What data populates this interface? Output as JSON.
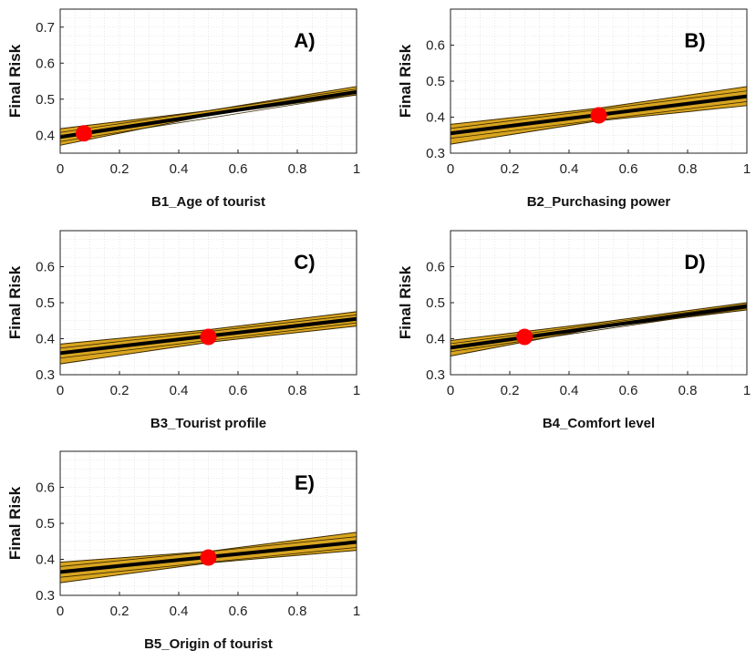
{
  "chart_data": [
    {
      "type": "line",
      "panel_label": "A)",
      "xlabel": "B1_Age of tourist",
      "ylabel": "Final Risk",
      "xlim": [
        0,
        1
      ],
      "ylim": [
        0.35,
        0.75
      ],
      "xticks": [
        "0",
        "0.2",
        "0.4",
        "0.6",
        "0.8",
        "1"
      ],
      "yticks": [
        "0.4",
        "0.5",
        "0.6",
        "0.7"
      ],
      "ytick_values": [
        0.4,
        0.5,
        0.6,
        0.7
      ],
      "series": [
        {
          "name": "mean",
          "x": [
            0,
            1
          ],
          "y": [
            0.395,
            0.52
          ]
        },
        {
          "name": "band_upper",
          "x": [
            0,
            0.5,
            1
          ],
          "y": [
            0.418,
            0.468,
            0.535
          ]
        },
        {
          "name": "band_lower",
          "x": [
            0,
            0.5,
            1
          ],
          "y": [
            0.372,
            0.455,
            0.512
          ]
        }
      ],
      "point": {
        "x": 0.08,
        "y": 0.405
      }
    },
    {
      "type": "line",
      "panel_label": "B)",
      "xlabel": "B2_Purchasing power",
      "ylabel": "Final Risk",
      "xlim": [
        0,
        1
      ],
      "ylim": [
        0.3,
        0.7
      ],
      "xticks": [
        "0",
        "0.2",
        "0.4",
        "0.6",
        "0.8",
        "1"
      ],
      "yticks": [
        "0.3",
        "0.4",
        "0.5",
        "0.6"
      ],
      "ytick_values": [
        0.3,
        0.4,
        0.5,
        0.6
      ],
      "series": [
        {
          "name": "mean",
          "x": [
            0,
            1
          ],
          "y": [
            0.355,
            0.458
          ]
        },
        {
          "name": "band_upper",
          "x": [
            0,
            0.5,
            1
          ],
          "y": [
            0.38,
            0.425,
            0.485
          ]
        },
        {
          "name": "band_lower",
          "x": [
            0,
            0.5,
            1
          ],
          "y": [
            0.325,
            0.39,
            0.432
          ]
        }
      ],
      "point": {
        "x": 0.5,
        "y": 0.405
      }
    },
    {
      "type": "line",
      "panel_label": "C)",
      "xlabel": "B3_Tourist profile",
      "ylabel": "Final Risk",
      "xlim": [
        0,
        1
      ],
      "ylim": [
        0.3,
        0.7
      ],
      "xticks": [
        "0",
        "0.2",
        "0.4",
        "0.6",
        "0.8",
        "1"
      ],
      "yticks": [
        "0.3",
        "0.4",
        "0.5",
        "0.6"
      ],
      "ytick_values": [
        0.3,
        0.4,
        0.5,
        0.6
      ],
      "series": [
        {
          "name": "mean",
          "x": [
            0,
            1
          ],
          "y": [
            0.36,
            0.455
          ]
        },
        {
          "name": "band_upper",
          "x": [
            0,
            0.5,
            1
          ],
          "y": [
            0.385,
            0.425,
            0.475
          ]
        },
        {
          "name": "band_lower",
          "x": [
            0,
            0.5,
            1
          ],
          "y": [
            0.33,
            0.39,
            0.435
          ]
        }
      ],
      "point": {
        "x": 0.5,
        "y": 0.405
      }
    },
    {
      "type": "line",
      "panel_label": "D)",
      "xlabel": "B4_Comfort level",
      "ylabel": "Final Risk",
      "xlim": [
        0,
        1
      ],
      "ylim": [
        0.3,
        0.7
      ],
      "xticks": [
        "0",
        "0.2",
        "0.4",
        "0.6",
        "0.8",
        "1"
      ],
      "yticks": [
        "0.3",
        "0.4",
        "0.5",
        "0.6"
      ],
      "ytick_values": [
        0.3,
        0.4,
        0.5,
        0.6
      ],
      "series": [
        {
          "name": "mean",
          "x": [
            0,
            1
          ],
          "y": [
            0.375,
            0.49
          ]
        },
        {
          "name": "band_upper",
          "x": [
            0,
            0.5,
            1
          ],
          "y": [
            0.395,
            0.445,
            0.5
          ]
        },
        {
          "name": "band_lower",
          "x": [
            0,
            0.5,
            1
          ],
          "y": [
            0.352,
            0.43,
            0.48
          ]
        }
      ],
      "point": {
        "x": 0.25,
        "y": 0.405
      }
    },
    {
      "type": "line",
      "panel_label": "E)",
      "xlabel": "B5_Origin of tourist",
      "ylabel": "Final Risk",
      "xlim": [
        0,
        1
      ],
      "ylim": [
        0.3,
        0.7
      ],
      "xticks": [
        "0",
        "0.2",
        "0.4",
        "0.6",
        "0.8",
        "1"
      ],
      "yticks": [
        "0.3",
        "0.4",
        "0.5",
        "0.6"
      ],
      "ytick_values": [
        0.3,
        0.4,
        0.5,
        0.6
      ],
      "series": [
        {
          "name": "mean",
          "x": [
            0,
            1
          ],
          "y": [
            0.365,
            0.448
          ]
        },
        {
          "name": "band_upper",
          "x": [
            0,
            0.5,
            1
          ],
          "y": [
            0.392,
            0.422,
            0.475
          ]
        },
        {
          "name": "band_lower",
          "x": [
            0,
            0.5,
            1
          ],
          "y": [
            0.335,
            0.39,
            0.425
          ]
        }
      ],
      "point": {
        "x": 0.5,
        "y": 0.405
      }
    }
  ],
  "colors": {
    "band_fill": "#d9a520",
    "band_edge": "#3a2a00",
    "mean_line": "#000000",
    "point": "#ff0000",
    "axis": "#222222",
    "grid": "#d8d8d8"
  }
}
